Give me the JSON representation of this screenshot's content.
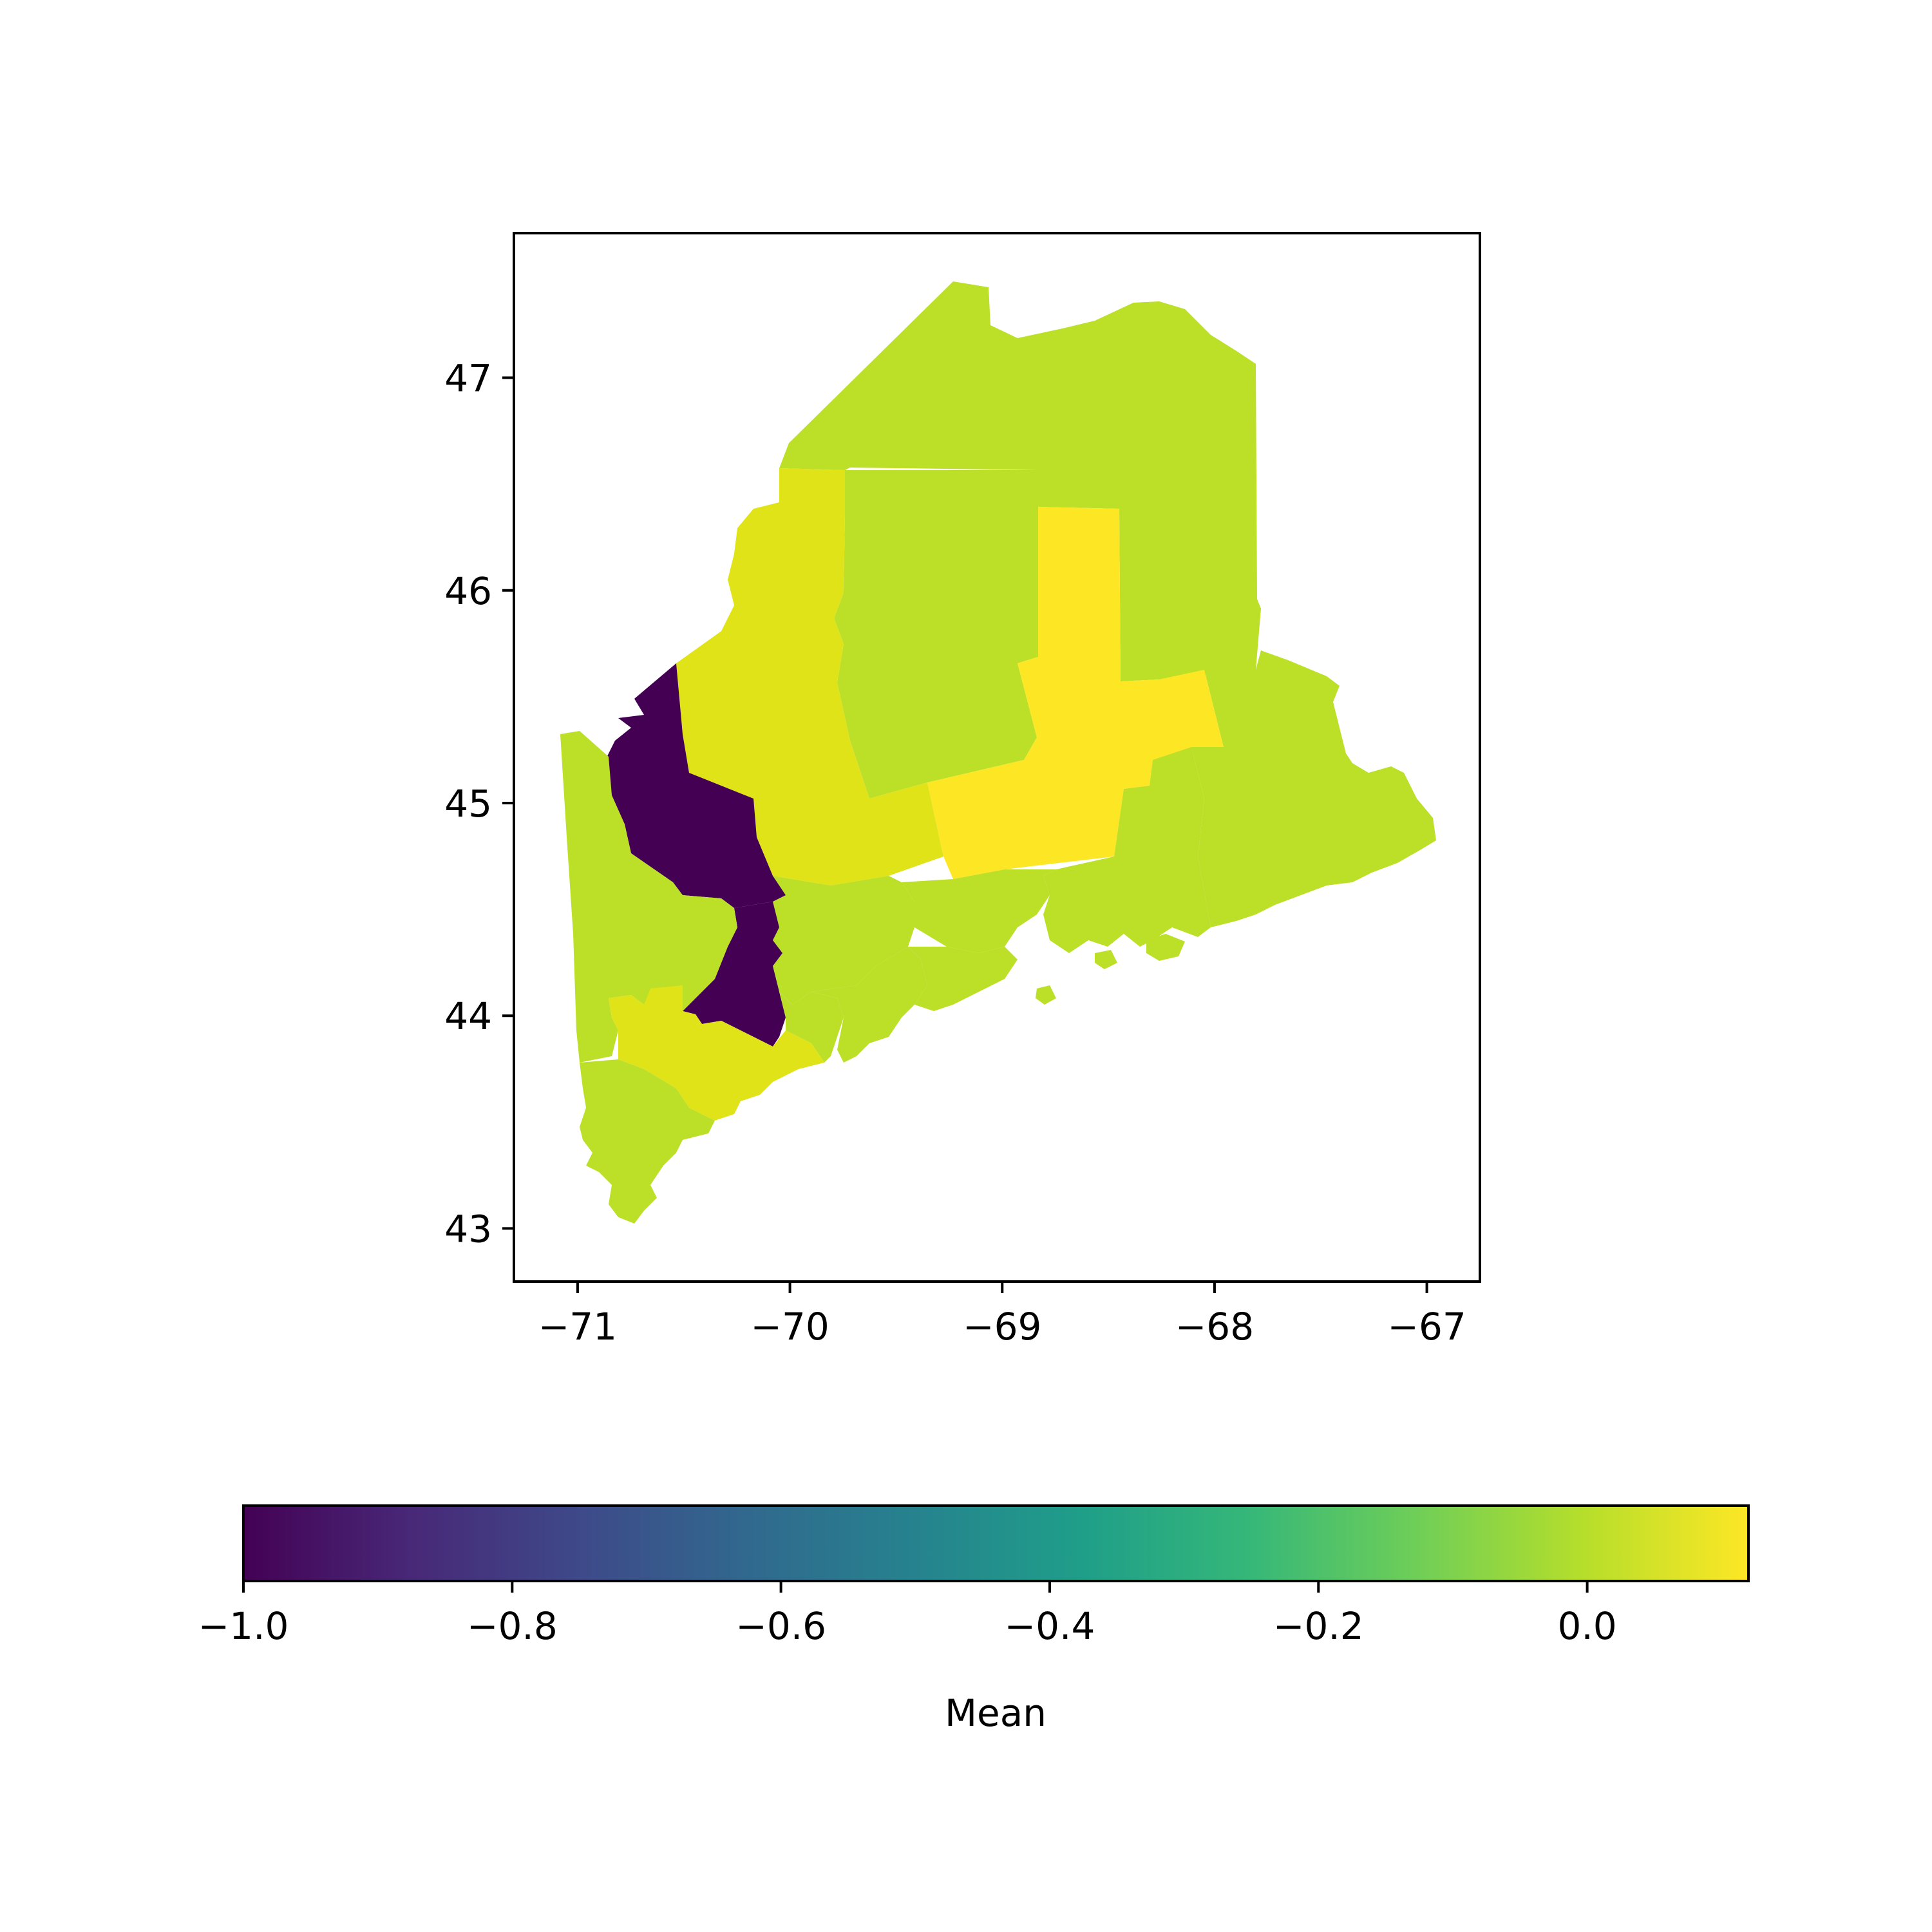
{
  "map": {
    "x_ticks": [
      "−71",
      "−70",
      "−69",
      "−68",
      "−67"
    ],
    "y_ticks": [
      "47",
      "46",
      "45",
      "44",
      "43"
    ],
    "x_tick_values": [
      -71,
      -70,
      -69,
      -68,
      -67
    ],
    "y_tick_values": [
      47,
      46,
      45,
      44,
      43
    ],
    "xlim": [
      -71.3,
      -66.75
    ],
    "ylim": [
      42.75,
      47.68
    ],
    "regions": [
      {
        "name": "Aroostook",
        "value": -0.05,
        "color": "#bcdf27"
      },
      {
        "name": "Piscataquis",
        "value": -0.05,
        "color": "#bcdf27"
      },
      {
        "name": "Somerset",
        "value": 0.05,
        "color": "#e0e318"
      },
      {
        "name": "Penobscot",
        "value": 0.1,
        "color": "#fde725"
      },
      {
        "name": "Washington",
        "value": -0.05,
        "color": "#bcdf27"
      },
      {
        "name": "Hancock",
        "value": -0.05,
        "color": "#bcdf27"
      },
      {
        "name": "Waldo",
        "value": -0.05,
        "color": "#bcdf27"
      },
      {
        "name": "Kennebec",
        "value": -0.05,
        "color": "#bcdf27"
      },
      {
        "name": "Franklin",
        "value": -1.0,
        "color": "#440154"
      },
      {
        "name": "Androscoggin",
        "value": -1.0,
        "color": "#440154"
      },
      {
        "name": "Oxford",
        "value": -0.05,
        "color": "#bcdf27"
      },
      {
        "name": "Cumberland",
        "value": 0.05,
        "color": "#e0e318"
      },
      {
        "name": "York",
        "value": -0.05,
        "color": "#bcdf27"
      },
      {
        "name": "Sagadahoc",
        "value": -0.05,
        "color": "#bcdf27"
      },
      {
        "name": "Lincoln",
        "value": -0.05,
        "color": "#bcdf27"
      },
      {
        "name": "Knox",
        "value": -0.05,
        "color": "#bcdf27"
      }
    ]
  },
  "colorbar": {
    "label": "Mean",
    "ticks": [
      "−1.0",
      "−0.8",
      "−0.6",
      "−0.4",
      "−0.2",
      "0.0"
    ],
    "tick_values": [
      -1.0,
      -0.8,
      -0.6,
      -0.4,
      -0.2,
      0.0
    ],
    "vmin": -1.0,
    "vmax": 0.12,
    "colormap": "viridis",
    "stops": [
      "#440154",
      "#482878",
      "#3e4989",
      "#31688e",
      "#26828e",
      "#1f9e89",
      "#35b779",
      "#6ece58",
      "#b5de2b",
      "#fde725"
    ]
  }
}
